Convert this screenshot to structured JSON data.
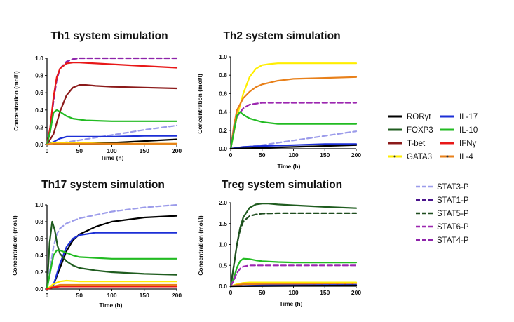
{
  "figure": {
    "legend": {
      "column_a": [
        "RORγt",
        "FOXP3",
        "T-bet",
        "GATA3"
      ],
      "column_b": [
        "IL-17",
        "IL-10",
        "IFNγ",
        "IL-4"
      ],
      "column_c": [
        "STAT3-P",
        "STAT1-P",
        "STAT5-P",
        "STAT6-P",
        "STAT4-P"
      ]
    }
  },
  "colors": {
    "RORγt": "#000000",
    "FOXP3": "#1f5c1f",
    "T-bet": "#8b1a1a",
    "GATA3": "#ffee00",
    "IL-17": "#1c2fd6",
    "IL-10": "#22bb22",
    "IFNγ": "#e81818",
    "IL-4": "#e8801a",
    "STAT3-P": "#9b9bea",
    "STAT1-P": "#4a148c",
    "STAT5-P": "#1f4d1f",
    "STAT6-P": "#9c27b0",
    "STAT4-P": "#8e24aa"
  },
  "chart_data": [
    {
      "type": "line",
      "title": "Th1 system simulation",
      "xlabel": "Time (h)",
      "ylabel": "Concentration (mol/l)",
      "xlim": [
        0,
        200
      ],
      "ylim": [
        0,
        1.0
      ],
      "xticks": [
        "0",
        "50",
        "100",
        "150",
        "200"
      ],
      "yticks": [
        "0.0",
        "0.2",
        "0.4",
        "0.6",
        "0.8",
        "1.0"
      ],
      "series": [
        {
          "name": "STAT4-P",
          "style": "dashed",
          "x": [
            0,
            5,
            10,
            15,
            20,
            30,
            40,
            50,
            75,
            100,
            150,
            200
          ],
          "y": [
            0,
            0.2,
            0.5,
            0.75,
            0.88,
            0.96,
            0.99,
            1.0,
            1.0,
            1.0,
            1.0,
            1.0
          ]
        },
        {
          "name": "IFNγ",
          "style": "solid",
          "x": [
            0,
            5,
            10,
            15,
            20,
            30,
            40,
            50,
            75,
            100,
            150,
            200
          ],
          "y": [
            0,
            0.2,
            0.55,
            0.78,
            0.88,
            0.94,
            0.95,
            0.95,
            0.94,
            0.93,
            0.91,
            0.89
          ]
        },
        {
          "name": "T-bet",
          "style": "solid",
          "x": [
            0,
            10,
            20,
            30,
            40,
            50,
            60,
            75,
            100,
            150,
            200
          ],
          "y": [
            0,
            0.12,
            0.38,
            0.57,
            0.66,
            0.69,
            0.69,
            0.68,
            0.67,
            0.66,
            0.65
          ]
        },
        {
          "name": "IL-10",
          "style": "solid",
          "x": [
            0,
            5,
            10,
            15,
            20,
            30,
            40,
            60,
            100,
            150,
            200
          ],
          "y": [
            0,
            0.15,
            0.37,
            0.4,
            0.38,
            0.33,
            0.3,
            0.28,
            0.27,
            0.27,
            0.27
          ]
        },
        {
          "name": "STAT3-P",
          "style": "dashed",
          "x": [
            0,
            25,
            50,
            100,
            150,
            200
          ],
          "y": [
            0,
            0.02,
            0.05,
            0.11,
            0.17,
            0.22
          ]
        },
        {
          "name": "IL-17",
          "style": "solid",
          "x": [
            0,
            10,
            20,
            30,
            50,
            100,
            150,
            200
          ],
          "y": [
            0,
            0.03,
            0.07,
            0.09,
            0.09,
            0.09,
            0.1,
            0.1
          ]
        },
        {
          "name": "RORγt",
          "style": "solid",
          "x": [
            0,
            50,
            100,
            150,
            200
          ],
          "y": [
            0,
            0.01,
            0.02,
            0.04,
            0.06
          ]
        },
        {
          "name": "GATA3",
          "style": "solid",
          "x": [
            0,
            10,
            30,
            100,
            200
          ],
          "y": [
            0,
            0.02,
            0.02,
            0.01,
            0.01
          ]
        },
        {
          "name": "IL-4",
          "style": "solid",
          "x": [
            0,
            10,
            50,
            200
          ],
          "y": [
            0,
            0.01,
            0.01,
            0.01
          ]
        }
      ]
    },
    {
      "type": "line",
      "title": "Th2 system simulation",
      "xlabel": "Time (h)",
      "ylabel": "Concentration (mol/l)",
      "xlim": [
        0,
        200
      ],
      "ylim": [
        0,
        1.0
      ],
      "xticks": [
        "0",
        "50",
        "100",
        "150",
        "200"
      ],
      "yticks": [
        "0.0",
        "0.2",
        "0.4",
        "0.6",
        "0.8",
        "1.0"
      ],
      "series": [
        {
          "name": "GATA3",
          "style": "solid",
          "x": [
            0,
            10,
            20,
            30,
            40,
            50,
            60,
            75,
            100,
            150,
            200
          ],
          "y": [
            0,
            0.35,
            0.6,
            0.78,
            0.87,
            0.91,
            0.92,
            0.93,
            0.93,
            0.93,
            0.93
          ]
        },
        {
          "name": "IL-4",
          "style": "solid",
          "x": [
            0,
            5,
            10,
            20,
            30,
            40,
            50,
            75,
            100,
            150,
            200
          ],
          "y": [
            0,
            0.25,
            0.42,
            0.55,
            0.62,
            0.67,
            0.7,
            0.74,
            0.76,
            0.77,
            0.78
          ]
        },
        {
          "name": "STAT6-P",
          "style": "dashed",
          "x": [
            0,
            5,
            10,
            20,
            30,
            50,
            100,
            150,
            200
          ],
          "y": [
            0,
            0.2,
            0.35,
            0.44,
            0.48,
            0.5,
            0.5,
            0.5,
            0.5
          ]
        },
        {
          "name": "IL-10",
          "style": "solid",
          "x": [
            0,
            5,
            10,
            15,
            20,
            30,
            50,
            75,
            100,
            150,
            200
          ],
          "y": [
            0,
            0.18,
            0.36,
            0.4,
            0.37,
            0.33,
            0.29,
            0.27,
            0.27,
            0.27,
            0.27
          ]
        },
        {
          "name": "STAT3-P",
          "style": "dashed",
          "x": [
            0,
            50,
            100,
            150,
            200
          ],
          "y": [
            0,
            0.04,
            0.09,
            0.14,
            0.19
          ]
        },
        {
          "name": "IL-17",
          "style": "solid",
          "x": [
            0,
            20,
            50,
            100,
            150,
            200
          ],
          "y": [
            0,
            0.02,
            0.03,
            0.04,
            0.05,
            0.05
          ]
        },
        {
          "name": "RORγt",
          "style": "solid",
          "x": [
            0,
            50,
            100,
            150,
            200
          ],
          "y": [
            0,
            0.01,
            0.02,
            0.03,
            0.04
          ]
        }
      ]
    },
    {
      "type": "line",
      "title": "Th17 system simulation",
      "xlabel": "Time (h)",
      "ylabel": "Concentration (mol/l)",
      "xlim": [
        0,
        200
      ],
      "ylim": [
        0,
        1.0
      ],
      "xticks": [
        "0",
        "50",
        "100",
        "150",
        "200"
      ],
      "yticks": [
        "0.0",
        "0.2",
        "0.4",
        "0.6",
        "0.8",
        "1.0"
      ],
      "series": [
        {
          "name": "STAT3-P",
          "style": "dashed",
          "x": [
            0,
            5,
            10,
            15,
            20,
            30,
            50,
            75,
            100,
            150,
            200
          ],
          "y": [
            0,
            0.25,
            0.5,
            0.65,
            0.72,
            0.78,
            0.84,
            0.88,
            0.92,
            0.97,
            1.0
          ]
        },
        {
          "name": "RORγt",
          "style": "solid",
          "x": [
            0,
            10,
            20,
            30,
            40,
            50,
            75,
            100,
            150,
            200
          ],
          "y": [
            0,
            0.05,
            0.25,
            0.45,
            0.58,
            0.65,
            0.74,
            0.8,
            0.85,
            0.87
          ]
        },
        {
          "name": "IL-17",
          "style": "solid",
          "x": [
            0,
            10,
            20,
            30,
            40,
            50,
            75,
            100,
            150,
            200
          ],
          "y": [
            0,
            0.05,
            0.3,
            0.5,
            0.6,
            0.64,
            0.67,
            0.67,
            0.67,
            0.67
          ]
        },
        {
          "name": "FOXP3",
          "style": "solid",
          "x": [
            0,
            4,
            8,
            12,
            16,
            20,
            30,
            40,
            50,
            75,
            100,
            150,
            200
          ],
          "y": [
            0,
            0.55,
            0.8,
            0.7,
            0.52,
            0.42,
            0.33,
            0.28,
            0.25,
            0.22,
            0.2,
            0.18,
            0.17
          ]
        },
        {
          "name": "IL-10",
          "style": "solid",
          "x": [
            0,
            5,
            10,
            15,
            20,
            30,
            40,
            50,
            75,
            100,
            150,
            200
          ],
          "y": [
            0,
            0.2,
            0.4,
            0.46,
            0.46,
            0.43,
            0.4,
            0.38,
            0.37,
            0.36,
            0.36,
            0.36
          ]
        },
        {
          "name": "GATA3",
          "style": "solid",
          "x": [
            0,
            10,
            20,
            30,
            50,
            100,
            150,
            200
          ],
          "y": [
            0,
            0.06,
            0.09,
            0.1,
            0.09,
            0.09,
            0.09,
            0.09
          ]
        },
        {
          "name": "IL-4",
          "style": "solid",
          "x": [
            0,
            10,
            20,
            50,
            100,
            200
          ],
          "y": [
            0,
            0.03,
            0.05,
            0.05,
            0.05,
            0.05
          ]
        },
        {
          "name": "IFNγ",
          "style": "solid",
          "x": [
            0,
            10,
            20,
            50,
            200
          ],
          "y": [
            0,
            0.02,
            0.03,
            0.03,
            0.03
          ]
        }
      ]
    },
    {
      "type": "line",
      "title": "Treg system simulation",
      "xlabel": "Time (h)",
      "ylabel": "Concentration (mol/l)",
      "xlim": [
        0,
        200
      ],
      "ylim": [
        0,
        2.0
      ],
      "xticks": [
        "0",
        "50",
        "100",
        "150",
        "200"
      ],
      "yticks": [
        "0.0",
        "0.5",
        "1.0",
        "1.5",
        "2.0"
      ],
      "series": [
        {
          "name": "FOXP3",
          "style": "solid",
          "x": [
            0,
            5,
            10,
            15,
            20,
            30,
            40,
            50,
            60,
            75,
            100,
            150,
            200
          ],
          "y": [
            0,
            0.5,
            1.0,
            1.4,
            1.65,
            1.88,
            1.96,
            1.98,
            1.98,
            1.96,
            1.94,
            1.9,
            1.87
          ]
        },
        {
          "name": "STAT5-P",
          "style": "dashed",
          "x": [
            0,
            5,
            10,
            15,
            20,
            30,
            40,
            50,
            75,
            100,
            150,
            200
          ],
          "y": [
            0,
            0.5,
            1.0,
            1.35,
            1.55,
            1.68,
            1.72,
            1.74,
            1.75,
            1.75,
            1.75,
            1.75
          ]
        },
        {
          "name": "IL-10",
          "style": "solid",
          "x": [
            0,
            5,
            10,
            15,
            20,
            30,
            40,
            50,
            75,
            100,
            150,
            200
          ],
          "y": [
            0,
            0.2,
            0.45,
            0.6,
            0.66,
            0.65,
            0.62,
            0.6,
            0.58,
            0.57,
            0.57,
            0.57
          ]
        },
        {
          "name": "STAT6-P",
          "style": "dashed",
          "x": [
            0,
            5,
            10,
            15,
            20,
            30,
            50,
            100,
            150,
            200
          ],
          "y": [
            0,
            0.15,
            0.32,
            0.42,
            0.47,
            0.5,
            0.5,
            0.5,
            0.5,
            0.5
          ]
        },
        {
          "name": "GATA3",
          "style": "solid",
          "x": [
            0,
            10,
            20,
            30,
            50,
            100,
            200
          ],
          "y": [
            0,
            0.05,
            0.08,
            0.09,
            0.09,
            0.09,
            0.09
          ]
        },
        {
          "name": "IL-4",
          "style": "solid",
          "x": [
            0,
            10,
            20,
            50,
            200
          ],
          "y": [
            0,
            0.03,
            0.05,
            0.05,
            0.05
          ]
        },
        {
          "name": "STAT3-P",
          "style": "dashed",
          "x": [
            0,
            100,
            200
          ],
          "y": [
            0,
            0.02,
            0.04
          ]
        },
        {
          "name": "IL-17",
          "style": "solid",
          "x": [
            0,
            50,
            200
          ],
          "y": [
            0,
            0.02,
            0.03
          ]
        },
        {
          "name": "RORγt",
          "style": "solid",
          "x": [
            0,
            100,
            200
          ],
          "y": [
            0,
            0.01,
            0.02
          ]
        }
      ]
    }
  ]
}
